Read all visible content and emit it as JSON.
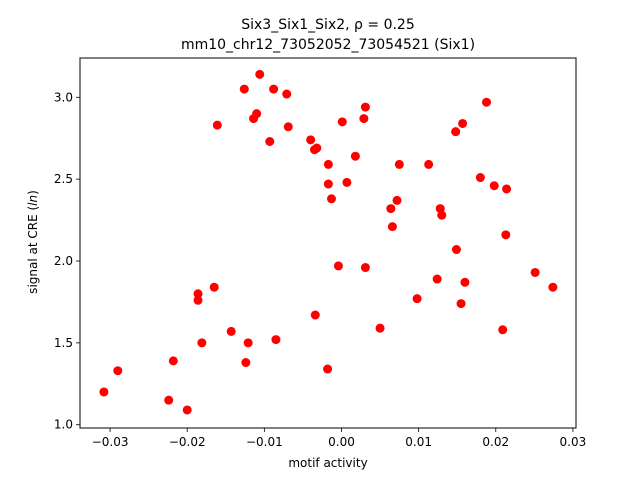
{
  "chart_data": {
    "type": "scatter",
    "title_line1_prefix": "Six3_Six1_Six2, ",
    "title_line1_rho": "ρ = 0.25",
    "title_line2": "mm10_chr12_73052052_73054521 (Six1)",
    "xlabel": "motif activity",
    "ylabel_prefix": "signal at CRE (",
    "ylabel_italic": "ln",
    "ylabel_suffix": ")",
    "xlim": [
      -0.0339,
      0.0304
    ],
    "ylim": [
      0.98,
      3.24
    ],
    "xticks": [
      -0.03,
      -0.02,
      -0.01,
      0.0,
      0.01,
      0.02,
      0.03
    ],
    "xtick_labels": [
      "−0.03",
      "−0.02",
      "−0.01",
      "0.00",
      "0.01",
      "0.02",
      "0.03"
    ],
    "yticks": [
      1.0,
      1.5,
      2.0,
      2.5,
      3.0
    ],
    "ytick_labels": [
      "1.0",
      "1.5",
      "2.0",
      "2.5",
      "3.0"
    ],
    "grid": false,
    "marker_color": "#ff0000",
    "points": [
      {
        "x": -0.0308,
        "y": 1.2
      },
      {
        "x": -0.029,
        "y": 1.33
      },
      {
        "x": -0.0224,
        "y": 1.15
      },
      {
        "x": -0.0218,
        "y": 1.39
      },
      {
        "x": -0.02,
        "y": 1.09
      },
      {
        "x": -0.0186,
        "y": 1.8
      },
      {
        "x": -0.0186,
        "y": 1.76
      },
      {
        "x": -0.0181,
        "y": 1.5
      },
      {
        "x": -0.0165,
        "y": 1.84
      },
      {
        "x": -0.0161,
        "y": 2.83
      },
      {
        "x": -0.0143,
        "y": 1.57
      },
      {
        "x": -0.0126,
        "y": 3.05
      },
      {
        "x": -0.0124,
        "y": 1.38
      },
      {
        "x": -0.0121,
        "y": 1.5
      },
      {
        "x": -0.0114,
        "y": 2.87
      },
      {
        "x": -0.011,
        "y": 2.9
      },
      {
        "x": -0.0106,
        "y": 3.14
      },
      {
        "x": -0.0093,
        "y": 2.73
      },
      {
        "x": -0.0088,
        "y": 3.05
      },
      {
        "x": -0.0085,
        "y": 1.52
      },
      {
        "x": -0.0071,
        "y": 3.02
      },
      {
        "x": -0.0069,
        "y": 2.82
      },
      {
        "x": -0.004,
        "y": 2.74
      },
      {
        "x": -0.0035,
        "y": 2.68
      },
      {
        "x": -0.0032,
        "y": 2.69
      },
      {
        "x": -0.0034,
        "y": 1.67
      },
      {
        "x": -0.0018,
        "y": 1.34
      },
      {
        "x": -0.0017,
        "y": 2.59
      },
      {
        "x": -0.0017,
        "y": 2.47
      },
      {
        "x": -0.0013,
        "y": 2.38
      },
      {
        "x": -0.0004,
        "y": 1.97
      },
      {
        "x": 0.0001,
        "y": 2.85
      },
      {
        "x": 0.0007,
        "y": 2.48
      },
      {
        "x": 0.0018,
        "y": 2.64
      },
      {
        "x": 0.0029,
        "y": 2.87
      },
      {
        "x": 0.0031,
        "y": 2.94
      },
      {
        "x": 0.0031,
        "y": 1.96
      },
      {
        "x": 0.005,
        "y": 1.59
      },
      {
        "x": 0.0064,
        "y": 2.32
      },
      {
        "x": 0.0066,
        "y": 2.21
      },
      {
        "x": 0.0072,
        "y": 2.37
      },
      {
        "x": 0.0075,
        "y": 2.59
      },
      {
        "x": 0.0098,
        "y": 1.77
      },
      {
        "x": 0.0113,
        "y": 2.59
      },
      {
        "x": 0.0124,
        "y": 1.89
      },
      {
        "x": 0.0128,
        "y": 2.32
      },
      {
        "x": 0.013,
        "y": 2.28
      },
      {
        "x": 0.0148,
        "y": 2.79
      },
      {
        "x": 0.0149,
        "y": 2.07
      },
      {
        "x": 0.0155,
        "y": 1.74
      },
      {
        "x": 0.0157,
        "y": 2.84
      },
      {
        "x": 0.016,
        "y": 1.87
      },
      {
        "x": 0.018,
        "y": 2.51
      },
      {
        "x": 0.0188,
        "y": 2.97
      },
      {
        "x": 0.0198,
        "y": 2.46
      },
      {
        "x": 0.0209,
        "y": 1.58
      },
      {
        "x": 0.0213,
        "y": 2.16
      },
      {
        "x": 0.0214,
        "y": 2.44
      },
      {
        "x": 0.0251,
        "y": 1.93
      },
      {
        "x": 0.0274,
        "y": 1.84
      }
    ]
  }
}
